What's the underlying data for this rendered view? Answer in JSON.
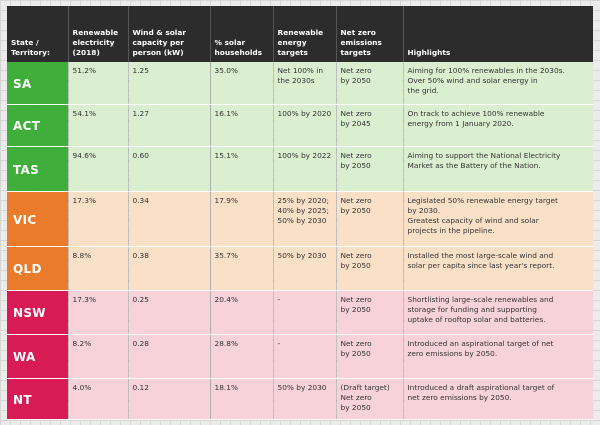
{
  "headers": [
    "State /\nTerritory:",
    "Renewable\nelectricity\n(2018)",
    "Wind & solar\ncapacity per\nperson (kW)",
    "% solar\nhouseholds",
    "Renewable\nenergy\ntargets",
    "Net zero\nemissions\ntargets",
    "Highlights"
  ],
  "rows": [
    {
      "state": "SA",
      "group": "green",
      "renewable": "51.2%",
      "capacity": "1.25",
      "solar": "35.0%",
      "re_target": "Net 100% in\nthe 2030s",
      "nz_target": "Net zero\nby 2050",
      "highlights": "Aiming for 100% renewables in the 2030s.\nOver 50% wind and solar energy in\nthe grid."
    },
    {
      "state": "ACT",
      "group": "green",
      "renewable": "54.1%",
      "capacity": "1.27",
      "solar": "16.1%",
      "re_target": "100% by 2020",
      "nz_target": "Net zero\nby 2045",
      "highlights": "On track to achieve 100% renewable\nenergy from 1 January 2020."
    },
    {
      "state": "TAS",
      "group": "green",
      "renewable": "94.6%",
      "capacity": "0.60",
      "solar": "15.1%",
      "re_target": "100% by 2022",
      "nz_target": "Net zero\nby 2050",
      "highlights": "Aiming to support the National Electricity\nMarket as the Battery of the Nation."
    },
    {
      "state": "VIC",
      "group": "orange",
      "renewable": "17.3%",
      "capacity": "0.34",
      "solar": "17.9%",
      "re_target": "25% by 2020;\n40% by 2025;\n50% by 2030",
      "nz_target": "Net zero\nby 2050",
      "highlights": "Legislated 50% renewable energy target\nby 2030.\nGreatest capacity of wind and solar\nprojects in the pipeline."
    },
    {
      "state": "QLD",
      "group": "orange",
      "renewable": "8.8%",
      "capacity": "0.38",
      "solar": "35.7%",
      "re_target": "50% by 2030",
      "nz_target": "Net zero\nby 2050",
      "highlights": "Installed the most large-scale wind and\nsolar per capita since last year's report."
    },
    {
      "state": "NSW",
      "group": "pink",
      "renewable": "17.3%",
      "capacity": "0.25",
      "solar": "20.4%",
      "re_target": "-",
      "nz_target": "Net zero\nby 2050",
      "highlights": "Shortlisting large-scale renewables and\nstorage for funding and supporting\nuptake of rooftop solar and batteries."
    },
    {
      "state": "WA",
      "group": "pink",
      "renewable": "8.2%",
      "capacity": "0.28",
      "solar": "28.8%",
      "re_target": "-",
      "nz_target": "Net zero\nby 2050",
      "highlights": "Introduced an aspirational target of net\nzero emissions by 2050."
    },
    {
      "state": "NT",
      "group": "pink",
      "renewable": "4.0%",
      "capacity": "0.12",
      "solar": "18.1%",
      "re_target": "50% by 2030",
      "nz_target": "(Draft target)\nNet zero\nby 2050",
      "highlights": "Introduced a draft aspirational target of\nnet zero emissions by 2050."
    }
  ]
}
